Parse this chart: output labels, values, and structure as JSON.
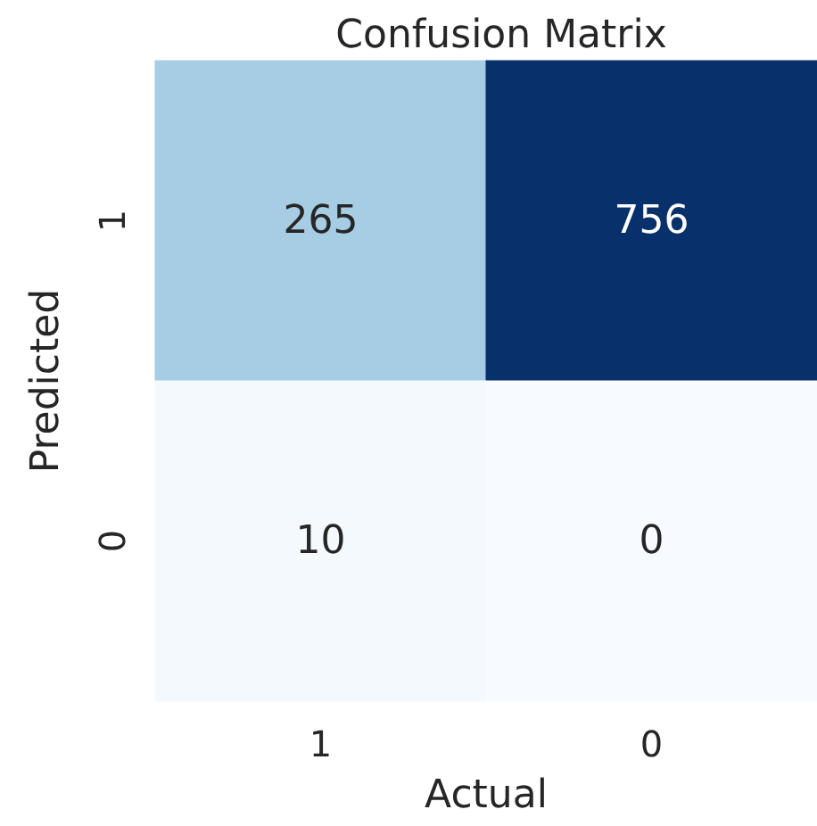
{
  "chart_data": {
    "type": "heatmap",
    "title": "Confusion Matrix",
    "xlabel": "Actual",
    "ylabel": "Predicted",
    "categories": [
      "1",
      "0"
    ],
    "y_categories": [
      "1",
      "0"
    ],
    "cells": [
      [
        265,
        756
      ],
      [
        10,
        0
      ]
    ],
    "data_labels": true
  }
}
